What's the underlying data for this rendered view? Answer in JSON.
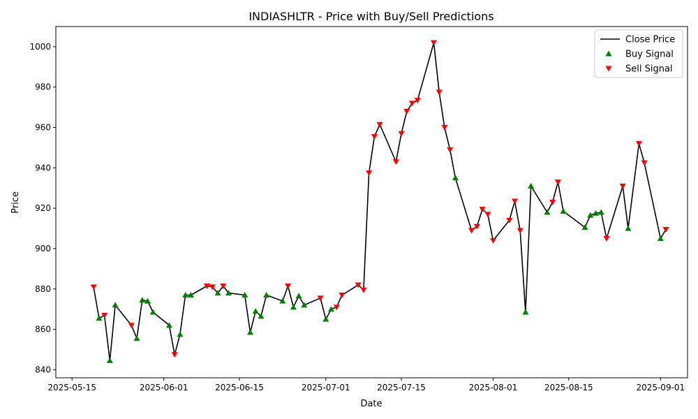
{
  "chart_data": {
    "type": "line",
    "title": "INDIASHLTR - Price with Buy/Sell Predictions",
    "xlabel": "Date",
    "ylabel": "Price",
    "x_range": [
      "2025-05-12",
      "2025-09-06"
    ],
    "ylim": [
      836,
      1010
    ],
    "x_ticks": [
      "2025-05-15",
      "2025-06-01",
      "2025-06-15",
      "2025-07-01",
      "2025-07-15",
      "2025-08-01",
      "2025-08-15",
      "2025-09-01"
    ],
    "x_tick_labels": [
      "2025-05-15",
      "2025-06-01",
      "2025-06-15",
      "2025-07-01",
      "2025-07-15",
      "2025-08-01",
      "2025-08-15",
      "2025-09-01"
    ],
    "y_ticks": [
      840,
      860,
      880,
      900,
      920,
      940,
      960,
      980,
      1000
    ],
    "y_tick_labels": [
      "840",
      "860",
      "880",
      "900",
      "920",
      "940",
      "960",
      "980",
      "1000"
    ],
    "grid": false,
    "legend_position": "top-right",
    "colors": {
      "line": "#000000",
      "buy": "#008000",
      "sell": "#ff0000"
    },
    "series": [
      {
        "name": "Close Price",
        "kind": "line",
        "points": [
          [
            "2025-05-19",
            881
          ],
          [
            "2025-05-20",
            865.5
          ],
          [
            "2025-05-21",
            867
          ],
          [
            "2025-05-22",
            844.5
          ],
          [
            "2025-05-23",
            872
          ],
          [
            "2025-05-26",
            862
          ],
          [
            "2025-05-27",
            855.5
          ],
          [
            "2025-05-28",
            874.5
          ],
          [
            "2025-05-29",
            874
          ],
          [
            "2025-05-30",
            868.5
          ],
          [
            "2025-06-02",
            862
          ],
          [
            "2025-06-03",
            847.5
          ],
          [
            "2025-06-04",
            857.5
          ],
          [
            "2025-06-05",
            877
          ],
          [
            "2025-06-06",
            877
          ],
          [
            "2025-06-09",
            881.5
          ],
          [
            "2025-06-10",
            881
          ],
          [
            "2025-06-11",
            878
          ],
          [
            "2025-06-12",
            881.5
          ],
          [
            "2025-06-13",
            878
          ],
          [
            "2025-06-16",
            877
          ],
          [
            "2025-06-17",
            858.5
          ],
          [
            "2025-06-18",
            869
          ],
          [
            "2025-06-19",
            866.5
          ],
          [
            "2025-06-20",
            877
          ],
          [
            "2025-06-23",
            874
          ],
          [
            "2025-06-24",
            881.5
          ],
          [
            "2025-06-25",
            871
          ],
          [
            "2025-06-26",
            876.5
          ],
          [
            "2025-06-27",
            872
          ],
          [
            "2025-06-30",
            875.5
          ],
          [
            "2025-07-01",
            865
          ],
          [
            "2025-07-02",
            870
          ],
          [
            "2025-07-03",
            871
          ],
          [
            "2025-07-04",
            877
          ],
          [
            "2025-07-07",
            882
          ],
          [
            "2025-07-08",
            879.5
          ],
          [
            "2025-07-09",
            937.5
          ],
          [
            "2025-07-10",
            955.5
          ],
          [
            "2025-07-11",
            961.5
          ],
          [
            "2025-07-14",
            943
          ],
          [
            "2025-07-15",
            957
          ],
          [
            "2025-07-16",
            968
          ],
          [
            "2025-07-17",
            972
          ],
          [
            "2025-07-18",
            973.5
          ],
          [
            "2025-07-21",
            1002
          ],
          [
            "2025-07-22",
            977.5
          ],
          [
            "2025-07-23",
            960
          ],
          [
            "2025-07-24",
            949
          ],
          [
            "2025-07-25",
            935
          ],
          [
            "2025-07-28",
            909
          ],
          [
            "2025-07-29",
            911
          ],
          [
            "2025-07-30",
            919.5
          ],
          [
            "2025-07-31",
            917
          ],
          [
            "2025-08-01",
            904
          ],
          [
            "2025-08-04",
            914
          ],
          [
            "2025-08-05",
            923.5
          ],
          [
            "2025-08-06",
            909
          ],
          [
            "2025-08-07",
            868.5
          ],
          [
            "2025-08-08",
            931
          ],
          [
            "2025-08-11",
            918
          ],
          [
            "2025-08-12",
            923
          ],
          [
            "2025-08-13",
            933
          ],
          [
            "2025-08-14",
            918.5
          ],
          [
            "2025-08-18",
            910.5
          ],
          [
            "2025-08-19",
            916.5
          ],
          [
            "2025-08-20",
            917.5
          ],
          [
            "2025-08-21",
            918
          ],
          [
            "2025-08-22",
            905
          ],
          [
            "2025-08-25",
            931
          ],
          [
            "2025-08-26",
            910
          ],
          [
            "2025-08-28",
            952
          ],
          [
            "2025-08-29",
            942.5
          ],
          [
            "2025-09-01",
            905
          ],
          [
            "2025-09-02",
            909.5
          ]
        ]
      },
      {
        "name": "Buy Signal",
        "kind": "marker-up",
        "points": [
          [
            "2025-05-20",
            865.5
          ],
          [
            "2025-05-22",
            844.5
          ],
          [
            "2025-05-23",
            872
          ],
          [
            "2025-05-27",
            855.5
          ],
          [
            "2025-05-28",
            874.5
          ],
          [
            "2025-05-29",
            874
          ],
          [
            "2025-05-30",
            868.5
          ],
          [
            "2025-06-02",
            862
          ],
          [
            "2025-06-04",
            857.5
          ],
          [
            "2025-06-05",
            877
          ],
          [
            "2025-06-06",
            877
          ],
          [
            "2025-06-11",
            878
          ],
          [
            "2025-06-13",
            878
          ],
          [
            "2025-06-16",
            877
          ],
          [
            "2025-06-17",
            858.5
          ],
          [
            "2025-06-18",
            869
          ],
          [
            "2025-06-19",
            866.5
          ],
          [
            "2025-06-20",
            877
          ],
          [
            "2025-06-23",
            874
          ],
          [
            "2025-06-25",
            871
          ],
          [
            "2025-06-26",
            876.5
          ],
          [
            "2025-06-27",
            872
          ],
          [
            "2025-07-01",
            865
          ],
          [
            "2025-07-02",
            870
          ],
          [
            "2025-07-25",
            935
          ],
          [
            "2025-08-07",
            868.5
          ],
          [
            "2025-08-08",
            931
          ],
          [
            "2025-08-11",
            918
          ],
          [
            "2025-08-14",
            918.5
          ],
          [
            "2025-08-18",
            910.5
          ],
          [
            "2025-08-19",
            916.5
          ],
          [
            "2025-08-20",
            917.5
          ],
          [
            "2025-08-21",
            918
          ],
          [
            "2025-08-26",
            910
          ],
          [
            "2025-09-01",
            905
          ]
        ]
      },
      {
        "name": "Sell Signal",
        "kind": "marker-down",
        "points": [
          [
            "2025-05-19",
            881
          ],
          [
            "2025-05-21",
            867
          ],
          [
            "2025-05-26",
            862
          ],
          [
            "2025-06-03",
            847.5
          ],
          [
            "2025-06-09",
            881.5
          ],
          [
            "2025-06-10",
            881
          ],
          [
            "2025-06-12",
            881.5
          ],
          [
            "2025-06-24",
            881.5
          ],
          [
            "2025-06-30",
            875.5
          ],
          [
            "2025-07-03",
            871
          ],
          [
            "2025-07-04",
            877
          ],
          [
            "2025-07-07",
            882
          ],
          [
            "2025-07-08",
            879.5
          ],
          [
            "2025-07-09",
            937.5
          ],
          [
            "2025-07-10",
            955.5
          ],
          [
            "2025-07-11",
            961.5
          ],
          [
            "2025-07-14",
            943
          ],
          [
            "2025-07-15",
            957
          ],
          [
            "2025-07-16",
            968
          ],
          [
            "2025-07-17",
            972
          ],
          [
            "2025-07-18",
            973.5
          ],
          [
            "2025-07-21",
            1002
          ],
          [
            "2025-07-22",
            977.5
          ],
          [
            "2025-07-23",
            960
          ],
          [
            "2025-07-24",
            949
          ],
          [
            "2025-07-28",
            909
          ],
          [
            "2025-07-29",
            911
          ],
          [
            "2025-07-30",
            919.5
          ],
          [
            "2025-07-31",
            917
          ],
          [
            "2025-08-01",
            904
          ],
          [
            "2025-08-04",
            914
          ],
          [
            "2025-08-05",
            923.5
          ],
          [
            "2025-08-06",
            909
          ],
          [
            "2025-08-12",
            923
          ],
          [
            "2025-08-13",
            933
          ],
          [
            "2025-08-22",
            905
          ],
          [
            "2025-08-25",
            931
          ],
          [
            "2025-08-28",
            952
          ],
          [
            "2025-08-29",
            942.5
          ],
          [
            "2025-09-02",
            909.5
          ]
        ]
      }
    ]
  }
}
